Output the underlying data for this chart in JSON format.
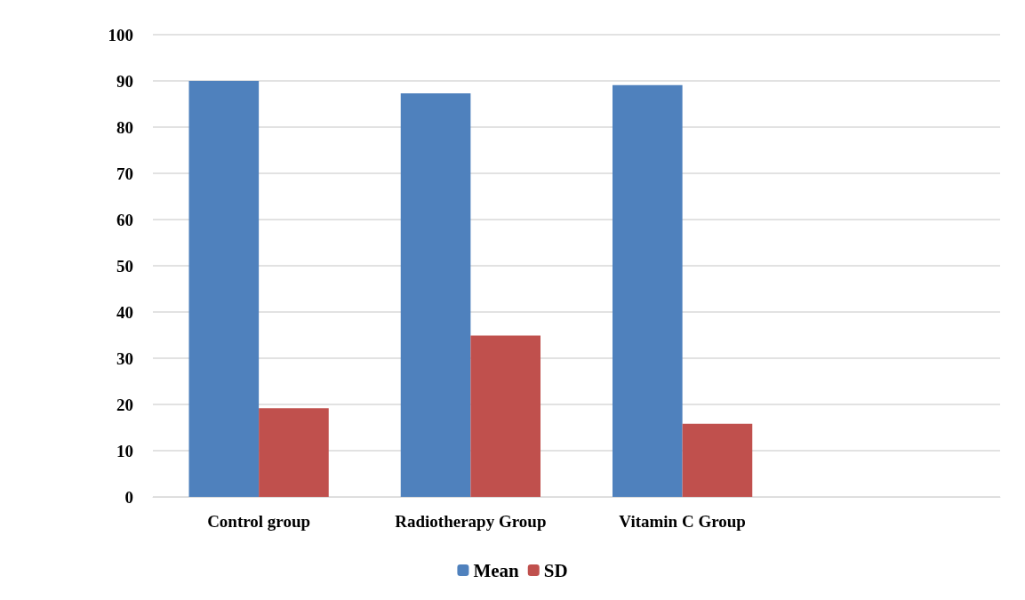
{
  "chart_data": {
    "type": "bar",
    "categories": [
      "Control group",
      "Radiotherapy Group",
      "Vitamin C Group",
      null
    ],
    "series": [
      {
        "name": "Mean",
        "color": "#4f81bd",
        "values": [
          90,
          87.3,
          89.1,
          null
        ]
      },
      {
        "name": "SD",
        "color": "#c0504d",
        "values": [
          19.2,
          34.9,
          15.8,
          null
        ]
      }
    ],
    "ylim": [
      0,
      100
    ],
    "yticks": [
      0,
      10,
      20,
      30,
      40,
      50,
      60,
      70,
      80,
      90,
      100
    ],
    "grid": "y",
    "legend": "bottom"
  }
}
